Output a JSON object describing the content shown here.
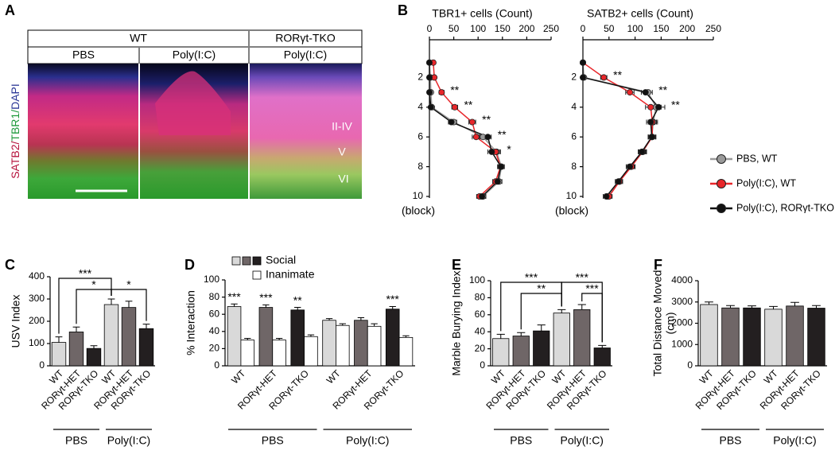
{
  "panel_a": {
    "panel": "A",
    "header": [
      "WT",
      "RORγt-TKO"
    ],
    "columns": [
      "PBS",
      "Poly(I:C)",
      "Poly(I:C)"
    ],
    "stain_label": [
      {
        "text": "SATB2/",
        "color": "#b5123c"
      },
      {
        "text": "TBR1/",
        "color": "#1f9a3c"
      },
      {
        "text": "DAPI",
        "color": "#2b3796"
      }
    ],
    "layers": [
      "II-IV",
      "V",
      "VI"
    ]
  },
  "chart_data": [
    {
      "type": "line",
      "orientation": "horizontal",
      "panel": "B",
      "title": "TBR1+ cells (Count)",
      "ylabel": "(block)",
      "y": [
        1,
        2,
        3,
        4,
        5,
        6,
        7,
        8,
        9,
        10
      ],
      "xlim": [
        0,
        250
      ],
      "xticks": [
        0,
        50,
        100,
        150,
        200,
        250
      ],
      "ylim": [
        0,
        10
      ],
      "yticks": [
        2,
        4,
        6,
        8,
        10
      ],
      "series": [
        {
          "name": "PBS, WT",
          "color": "#9a9a9a",
          "values": [
            0,
            2,
            3,
            5,
            50,
            110,
            138,
            148,
            143,
            110
          ],
          "errors": [
            1,
            2,
            2,
            3,
            6,
            8,
            8,
            6,
            6,
            6
          ]
        },
        {
          "name": "Poly(I:C), WT",
          "color": "#e8262a",
          "values": [
            8,
            10,
            25,
            52,
            88,
            96,
            136,
            146,
            136,
            103
          ],
          "errors": [
            2,
            3,
            5,
            6,
            7,
            8,
            8,
            6,
            6,
            6
          ]
        },
        {
          "name": "Poly(I:C), RORγt-TKO",
          "color": "#111111",
          "values": [
            0,
            0,
            0,
            3,
            45,
            120,
            128,
            147,
            140,
            108
          ],
          "errors": [
            1,
            1,
            1,
            2,
            6,
            7,
            8,
            5,
            6,
            6
          ]
        }
      ],
      "annotations": [
        {
          "text": "**",
          "y": 3
        },
        {
          "text": "**",
          "y": 4
        },
        {
          "text": "**",
          "y": 5
        },
        {
          "text": "**",
          "y": 6
        },
        {
          "text": "*",
          "y": 7
        }
      ]
    },
    {
      "type": "line",
      "orientation": "horizontal",
      "title": "SATB2+ cells (Count)",
      "ylabel": "(block)",
      "y": [
        1,
        2,
        3,
        4,
        5,
        6,
        7,
        8,
        9,
        10
      ],
      "xlim": [
        0,
        250
      ],
      "xticks": [
        0,
        50,
        100,
        150,
        200,
        250
      ],
      "ylim": [
        0,
        10
      ],
      "yticks": [
        2,
        4,
        6,
        8,
        10
      ],
      "series": [
        {
          "color": "#9a9a9a",
          "values": [
            0,
            2,
            125,
            140,
            135,
            132,
            115,
            92,
            70,
            48
          ],
          "errors": [
            1,
            2,
            8,
            10,
            8,
            7,
            7,
            7,
            6,
            6
          ]
        },
        {
          "color": "#e8262a",
          "values": [
            0,
            40,
            90,
            130,
            133,
            133,
            114,
            93,
            70,
            50
          ],
          "errors": [
            1,
            6,
            8,
            10,
            8,
            7,
            7,
            7,
            6,
            6
          ]
        },
        {
          "color": "#111111",
          "values": [
            0,
            0,
            120,
            145,
            130,
            132,
            113,
            90,
            68,
            45
          ],
          "errors": [
            1,
            1,
            8,
            12,
            8,
            7,
            7,
            7,
            6,
            6
          ]
        }
      ],
      "annotations": [
        {
          "text": "**",
          "y": 2
        },
        {
          "text": "**",
          "y": 3
        },
        {
          "text": "**",
          "y": 4
        }
      ]
    },
    {
      "type": "bar",
      "panel": "C",
      "ylabel": "USV Index",
      "categories": [
        "WT",
        "RORγt-HET",
        "RORγt-TKO",
        "WT",
        "RORγt-HET",
        "RORγt-TKO"
      ],
      "groups": [
        "PBS",
        "Poly(I:C)"
      ],
      "values": [
        105,
        152,
        78,
        275,
        262,
        167
      ],
      "errors": [
        25,
        22,
        12,
        25,
        28,
        20
      ],
      "colors": [
        "#d9d9d9",
        "#6f6667",
        "#231f20",
        "#d9d9d9",
        "#6f6667",
        "#231f20"
      ],
      "ylim": [
        0,
        400
      ],
      "yticks": [
        0,
        100,
        200,
        300,
        400
      ],
      "brackets": [
        {
          "from": 0,
          "to": 3,
          "label": "***"
        },
        {
          "from": 1,
          "to": 3,
          "label": "*"
        },
        {
          "from": 3,
          "to": 5,
          "label": "*"
        }
      ]
    },
    {
      "type": "bar",
      "panel": "D",
      "ylabel": "% Interaction",
      "categories": [
        "WT",
        "RORγt-HET",
        "RORγt-TKO",
        "WT",
        "RORγt-HET",
        "RORγt-TKO"
      ],
      "groups": [
        "PBS",
        "Poly(I:C)"
      ],
      "series": [
        {
          "name": "Social",
          "colors": [
            "#d9d9d9",
            "#6f6667",
            "#231f20",
            "#d9d9d9",
            "#6f6667",
            "#231f20"
          ],
          "values": [
            69,
            68,
            65,
            53,
            53,
            66
          ],
          "errors": [
            3,
            3,
            3,
            2,
            3,
            3
          ],
          "significance": [
            "***",
            "***",
            "**",
            null,
            null,
            "***"
          ]
        },
        {
          "name": "Inanimate",
          "color": "#ffffff",
          "values": [
            30,
            30,
            34,
            47,
            46,
            33
          ],
          "errors": [
            2,
            2,
            2,
            2,
            3,
            2
          ]
        }
      ],
      "ylim": [
        0,
        100
      ],
      "yticks": [
        0,
        20,
        40,
        60,
        80,
        100
      ]
    },
    {
      "type": "bar",
      "panel": "E",
      "ylabel": "Marble Burying Index",
      "categories": [
        "WT",
        "RORγt-HET",
        "RORγt-TKO",
        "WT",
        "RORγt-HET",
        "RORγt-TKO"
      ],
      "groups": [
        "PBS",
        "Poly(I:C)"
      ],
      "values": [
        32,
        35,
        41,
        62,
        66,
        21
      ],
      "errors": [
        5,
        4,
        7,
        4,
        6,
        3
      ],
      "colors": [
        "#d9d9d9",
        "#6f6667",
        "#231f20",
        "#d9d9d9",
        "#6f6667",
        "#231f20"
      ],
      "ylim": [
        0,
        100
      ],
      "yticks": [
        0,
        20,
        40,
        60,
        80,
        100
      ],
      "brackets": [
        {
          "from": 0,
          "to": 3,
          "label": "***"
        },
        {
          "from": 1,
          "to": 3,
          "label": "**"
        },
        {
          "from": 3,
          "to": 5,
          "label": "***"
        },
        {
          "from": 4,
          "to": 5,
          "label": "***"
        }
      ]
    },
    {
      "type": "bar",
      "panel": "F",
      "ylabel": [
        "Total Distance Moved",
        "(cm)"
      ],
      "categories": [
        "WT",
        "RORγt-HET",
        "RORγt-TKO",
        "WT",
        "RORγt-HET",
        "RORγt-TKO"
      ],
      "groups": [
        "PBS",
        "Poly(I:C)"
      ],
      "values": [
        2880,
        2720,
        2720,
        2660,
        2810,
        2710
      ],
      "errors": [
        120,
        110,
        100,
        130,
        170,
        120
      ],
      "colors": [
        "#d9d9d9",
        "#6f6667",
        "#231f20",
        "#d9d9d9",
        "#6f6667",
        "#231f20"
      ],
      "ylim": [
        0,
        4000
      ],
      "yticks": [
        0,
        1000,
        2000,
        3000,
        4000
      ]
    }
  ]
}
